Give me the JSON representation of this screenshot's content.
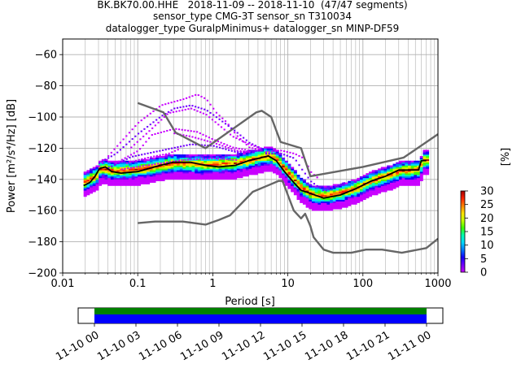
{
  "chart_data": {
    "type": "heatmap",
    "title_lines": [
      "BK.BK70.00.HHE   2018-11-09 -- 2018-11-10  (47/47 segments)",
      "sensor_type CMG-3T sensor_sn T310034",
      "datalogger_type GuralpMinimus+ datalogger_sn MINP-DF59"
    ],
    "xlabel": "Period [s]",
    "ylabel": "Power [m²/s⁴/Hz] [dB]",
    "xscale": "log",
    "xlim": [
      0.01,
      1000
    ],
    "ylim": [
      -200,
      -50
    ],
    "x_ticks": [
      {
        "value": 0.01,
        "label": "0.01"
      },
      {
        "value": 0.1,
        "label": "0.1"
      },
      {
        "value": 1,
        "label": "1"
      },
      {
        "value": 10,
        "label": "10"
      },
      {
        "value": 100,
        "label": "100"
      },
      {
        "value": 1000,
        "label": "1000"
      }
    ],
    "y_ticks": [
      {
        "value": -60,
        "label": "−60"
      },
      {
        "value": -80,
        "label": "−80"
      },
      {
        "value": -100,
        "label": "−100"
      },
      {
        "value": -120,
        "label": "−120"
      },
      {
        "value": -140,
        "label": "−140"
      },
      {
        "value": -160,
        "label": "−160"
      },
      {
        "value": -180,
        "label": "−180"
      },
      {
        "value": -200,
        "label": "−200"
      }
    ],
    "grid": true,
    "colorbar": {
      "label": "[%]",
      "range": [
        0,
        30
      ],
      "ticks": [
        {
          "value": 0,
          "label": "0"
        },
        {
          "value": 5,
          "label": "5"
        },
        {
          "value": 10,
          "label": "10"
        },
        {
          "value": 15,
          "label": "15"
        },
        {
          "value": 20,
          "label": "20"
        },
        {
          "value": 25,
          "label": "25"
        },
        {
          "value": 30,
          "label": "30"
        }
      ],
      "colors": [
        "#ffffff",
        "#c800ff",
        "#7000ff",
        "#1400ff",
        "#0078ff",
        "#00d8ff",
        "#00ffb0",
        "#40ff00",
        "#c8ff00",
        "#ffe000",
        "#ff8000",
        "#ff2000",
        "#a00000"
      ]
    },
    "noise_models": [
      {
        "points": [
          [
            0.1,
            -91
          ],
          [
            0.22,
            -97
          ],
          [
            0.32,
            -110
          ],
          [
            0.8,
            -120
          ],
          [
            3.8,
            -97
          ],
          [
            4.5,
            -96
          ],
          [
            6,
            -100
          ],
          [
            8,
            -116
          ],
          [
            15,
            -120
          ],
          [
            20,
            -138
          ],
          [
            100,
            -132
          ],
          [
            350,
            -126
          ],
          [
            1000,
            -111
          ]
        ]
      },
      {
        "points": [
          [
            0.1,
            -168
          ],
          [
            0.17,
            -167
          ],
          [
            0.4,
            -167
          ],
          [
            0.8,
            -169
          ],
          [
            1.2,
            -166
          ],
          [
            1.7,
            -163
          ],
          [
            3.4,
            -148
          ],
          [
            6,
            -143
          ],
          [
            7.5,
            -141
          ],
          [
            8.5,
            -141
          ],
          [
            10,
            -150
          ],
          [
            12,
            -160
          ],
          [
            15,
            -165
          ],
          [
            17,
            -162
          ],
          [
            20,
            -170
          ],
          [
            22,
            -177
          ],
          [
            30,
            -185
          ],
          [
            40,
            -187
          ],
          [
            70,
            -187
          ],
          [
            110,
            -185
          ],
          [
            180,
            -185
          ],
          [
            330,
            -187
          ],
          [
            700,
            -184
          ],
          [
            1000,
            -178
          ]
        ]
      }
    ],
    "mean_curve": [
      [
        0.019,
        -144
      ],
      [
        0.023,
        -142
      ],
      [
        0.027,
        -138
      ],
      [
        0.031,
        -133
      ],
      [
        0.037,
        -132
      ],
      [
        0.045,
        -135
      ],
      [
        0.06,
        -136
      ],
      [
        0.1,
        -135
      ],
      [
        0.2,
        -131
      ],
      [
        0.3,
        -129
      ],
      [
        0.5,
        -129
      ],
      [
        0.8,
        -131
      ],
      [
        1.2,
        -132
      ],
      [
        2,
        -131
      ],
      [
        3,
        -128
      ],
      [
        4.5,
        -126
      ],
      [
        5.5,
        -125
      ],
      [
        7,
        -128
      ],
      [
        9,
        -135
      ],
      [
        12,
        -142
      ],
      [
        15,
        -147
      ],
      [
        20,
        -149
      ],
      [
        30,
        -152
      ],
      [
        50,
        -150
      ],
      [
        80,
        -146
      ],
      [
        130,
        -141
      ],
      [
        200,
        -138
      ],
      [
        300,
        -134
      ],
      [
        450,
        -134
      ],
      [
        550,
        -134
      ],
      [
        600,
        -128
      ],
      [
        700,
        -128
      ]
    ],
    "psd_band_center": [
      [
        0.019,
        -142
      ],
      [
        0.027,
        -138
      ],
      [
        0.031,
        -133
      ],
      [
        0.045,
        -135
      ],
      [
        0.1,
        -134
      ],
      [
        0.3,
        -130
      ],
      [
        0.8,
        -131
      ],
      [
        2,
        -130
      ],
      [
        4.5,
        -126
      ],
      [
        5.5,
        -125
      ],
      [
        7,
        -128
      ],
      [
        9,
        -134
      ],
      [
        12,
        -141
      ],
      [
        15,
        -146
      ],
      [
        20,
        -150
      ],
      [
        30,
        -151
      ],
      [
        50,
        -149
      ],
      [
        80,
        -146
      ],
      [
        130,
        -141
      ],
      [
        200,
        -138
      ],
      [
        300,
        -135
      ],
      [
        550,
        -134
      ],
      [
        600,
        -128
      ],
      [
        700,
        -128
      ]
    ],
    "outlier_curves": [
      [
        [
          0.03,
          -132
        ],
        [
          0.05,
          -120
        ],
        [
          0.1,
          -104
        ],
        [
          0.2,
          -93
        ],
        [
          0.4,
          -89
        ],
        [
          0.6,
          -86
        ],
        [
          0.8,
          -89
        ],
        [
          1.1,
          -98
        ],
        [
          1.5,
          -104
        ],
        [
          2,
          -112
        ],
        [
          3,
          -120
        ],
        [
          4.5,
          -122
        ]
      ],
      [
        [
          0.03,
          -130
        ],
        [
          0.05,
          -124
        ],
        [
          0.1,
          -111
        ],
        [
          0.2,
          -100
        ],
        [
          0.3,
          -95
        ],
        [
          0.5,
          -93
        ],
        [
          0.8,
          -96
        ],
        [
          1.2,
          -102
        ],
        [
          2,
          -110
        ],
        [
          3,
          -117
        ],
        [
          4.5,
          -121
        ]
      ],
      [
        [
          0.08,
          -120
        ],
        [
          0.15,
          -108
        ],
        [
          0.25,
          -98
        ],
        [
          0.5,
          -95
        ],
        [
          0.8,
          -99
        ],
        [
          1.2,
          -106
        ],
        [
          1.8,
          -113
        ],
        [
          3,
          -118
        ],
        [
          4.5,
          -121
        ]
      ],
      [
        [
          0.05,
          -130
        ],
        [
          0.1,
          -122
        ],
        [
          0.15,
          -112
        ],
        [
          0.3,
          -108
        ],
        [
          0.6,
          -110
        ],
        [
          1,
          -115
        ],
        [
          1.8,
          -120
        ],
        [
          3,
          -122
        ]
      ],
      [
        [
          0.04,
          -133
        ],
        [
          0.08,
          -126
        ],
        [
          0.2,
          -122
        ],
        [
          0.5,
          -118
        ],
        [
          1,
          -119
        ],
        [
          2,
          -123
        ],
        [
          4.5,
          -122
        ]
      ],
      [
        [
          0.3,
          -111
        ],
        [
          0.5,
          -113
        ],
        [
          1,
          -117
        ],
        [
          2,
          -122
        ],
        [
          3,
          -123
        ]
      ],
      [
        [
          5,
          -123
        ],
        [
          8,
          -122
        ],
        [
          12,
          -124
        ],
        [
          16,
          -127
        ],
        [
          20,
          -136
        ],
        [
          25,
          -140
        ]
      ],
      [
        [
          5,
          -124
        ],
        [
          8,
          -124
        ],
        [
          12,
          -127
        ],
        [
          15,
          -134
        ],
        [
          20,
          -142
        ],
        [
          30,
          -148
        ],
        [
          60,
          -142
        ]
      ],
      [
        [
          0.07,
          -130
        ],
        [
          0.1,
          -128
        ],
        [
          0.15,
          -126
        ],
        [
          0.25,
          -124
        ],
        [
          0.35,
          -121
        ]
      ],
      [
        [
          0.06,
          -134
        ],
        [
          0.15,
          -131
        ],
        [
          0.4,
          -128
        ],
        [
          1,
          -127
        ],
        [
          2,
          -128
        ]
      ]
    ]
  },
  "time_axis": {
    "ticks": [
      {
        "label": "11-10 00"
      },
      {
        "label": "11-10 03"
      },
      {
        "label": "11-10 06"
      },
      {
        "label": "11-10 09"
      },
      {
        "label": "11-10 12"
      },
      {
        "label": "11-10 15"
      },
      {
        "label": "11-10 18"
      },
      {
        "label": "11-10 21"
      },
      {
        "label": "11-11 00"
      }
    ],
    "coverage_colors": {
      "data": "#008000",
      "used": "#0000ff"
    }
  }
}
